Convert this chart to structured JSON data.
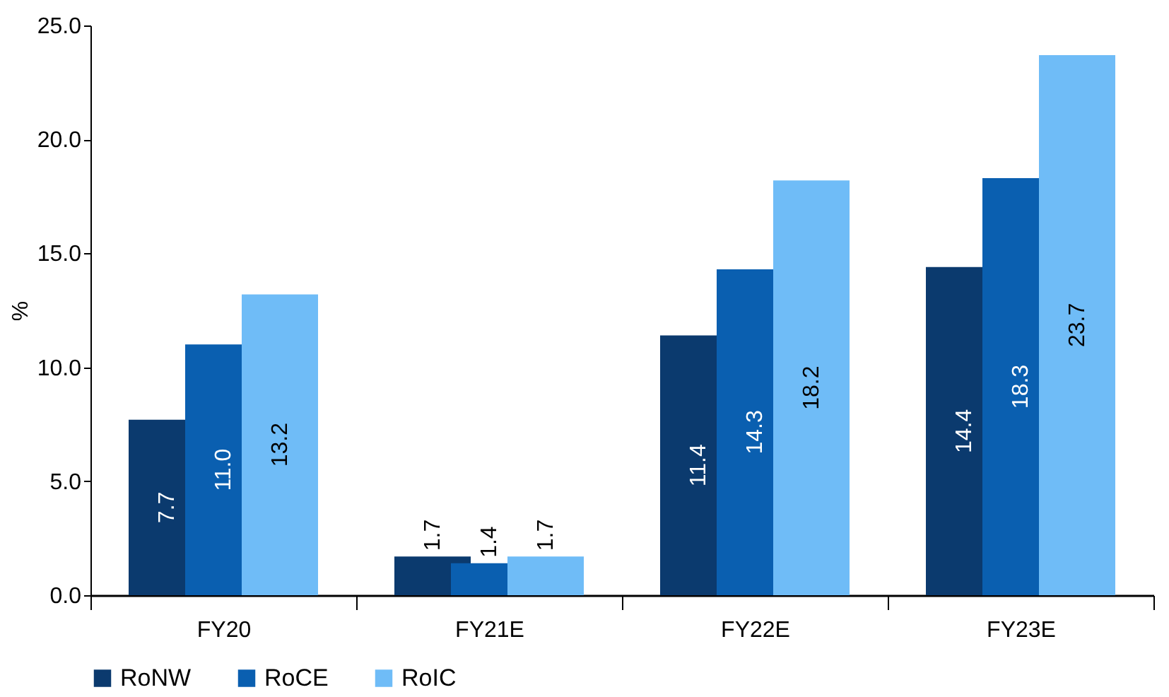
{
  "chart_data": {
    "type": "bar",
    "categories": [
      "FY20",
      "FY21E",
      "FY22E",
      "FY23E"
    ],
    "series": [
      {
        "name": "RoNW",
        "color": "#0b3a6e",
        "values": [
          7.7,
          1.7,
          11.4,
          14.4
        ],
        "value_labels": [
          "7.7",
          "1.7",
          "11.4",
          "14.4"
        ]
      },
      {
        "name": "RoCE",
        "color": "#0a5fb0",
        "values": [
          11.0,
          1.4,
          14.3,
          18.3
        ],
        "value_labels": [
          "11.0",
          "1.4",
          "14.3",
          "18.3"
        ]
      },
      {
        "name": "RoIC",
        "color": "#6fbcf7",
        "values": [
          13.2,
          1.7,
          18.2,
          23.7
        ],
        "value_labels": [
          "13.2",
          "1.7",
          "18.2",
          "23.7"
        ]
      }
    ],
    "ylabel": "%",
    "ylim": [
      0,
      25
    ],
    "yticks": [
      {
        "value": 0,
        "label": "0.0"
      },
      {
        "value": 5,
        "label": "5.0"
      },
      {
        "value": 10,
        "label": "10.0"
      },
      {
        "value": 15,
        "label": "15.0"
      },
      {
        "value": 20,
        "label": "20.0"
      },
      {
        "value": 25,
        "label": "25.0"
      }
    ],
    "data_labels": true,
    "grid": false,
    "legend": "bottom"
  }
}
